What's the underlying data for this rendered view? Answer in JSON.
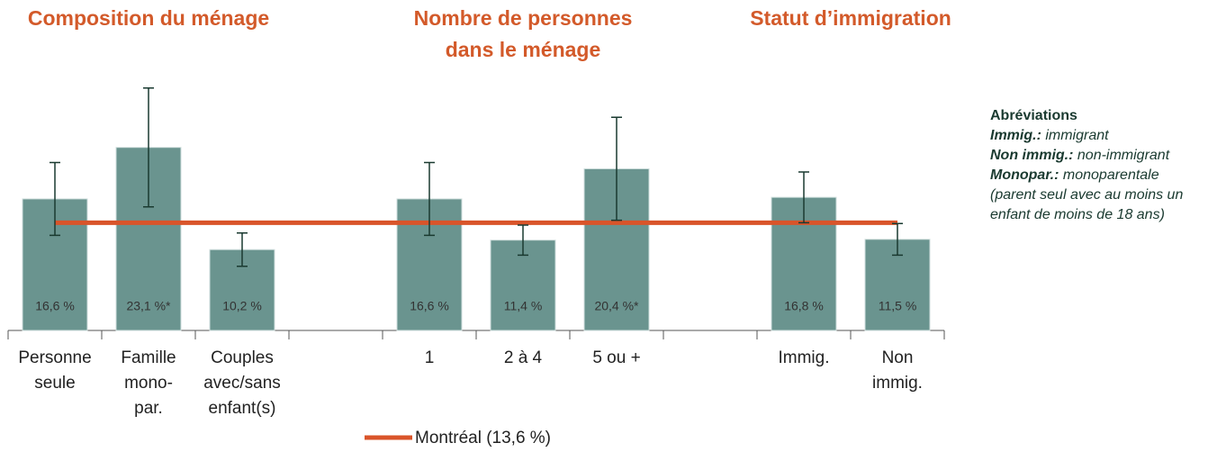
{
  "chart_data": {
    "type": "bar",
    "groups": [
      [
        "Composition du ménage"
      ],
      [
        "Nombre de personnes",
        "dans le ménage"
      ],
      [
        "Statut d’immigration"
      ]
    ],
    "categories": [
      [
        "Personne",
        "seule"
      ],
      [
        "Famille",
        "mono-",
        "par."
      ],
      [
        "Couples",
        "avec/sans",
        "enfant(s)"
      ],
      null,
      [
        "1"
      ],
      [
        "2 à 4"
      ],
      [
        "5 ou +"
      ],
      null,
      [
        "Immig."
      ],
      [
        "Non",
        "immig."
      ]
    ],
    "values": [
      16.6,
      23.1,
      10.2,
      null,
      16.6,
      11.4,
      20.4,
      null,
      16.8,
      11.5
    ],
    "value_labels": [
      "16,6 %",
      "23,1 %*",
      "10,2 %",
      null,
      "16,6 %",
      "11,4 %",
      "20,4 %*",
      null,
      "16,8 %",
      "11,5 %"
    ],
    "errors": [
      4.6,
      7.5,
      2.1,
      null,
      4.6,
      1.9,
      6.5,
      null,
      3.2,
      2.0
    ],
    "color": "#6a948f",
    "error_color": "#1a3a30",
    "reference": {
      "name": "Montréal (13,6 %)",
      "value": 13.6,
      "color": "#d9542a"
    },
    "ylim": [
      0,
      35
    ],
    "annotation": {
      "title": "Abréviations",
      "items": [
        {
          "term": "Immig.:",
          "definition": "immigrant"
        },
        {
          "term": "Non immig.:",
          "definition": "non-immigrant"
        },
        {
          "term": "Monopar.:",
          "definition": "monoparentale (parent seul avec au moins un enfant de moins de 18 ans)"
        }
      ]
    }
  }
}
